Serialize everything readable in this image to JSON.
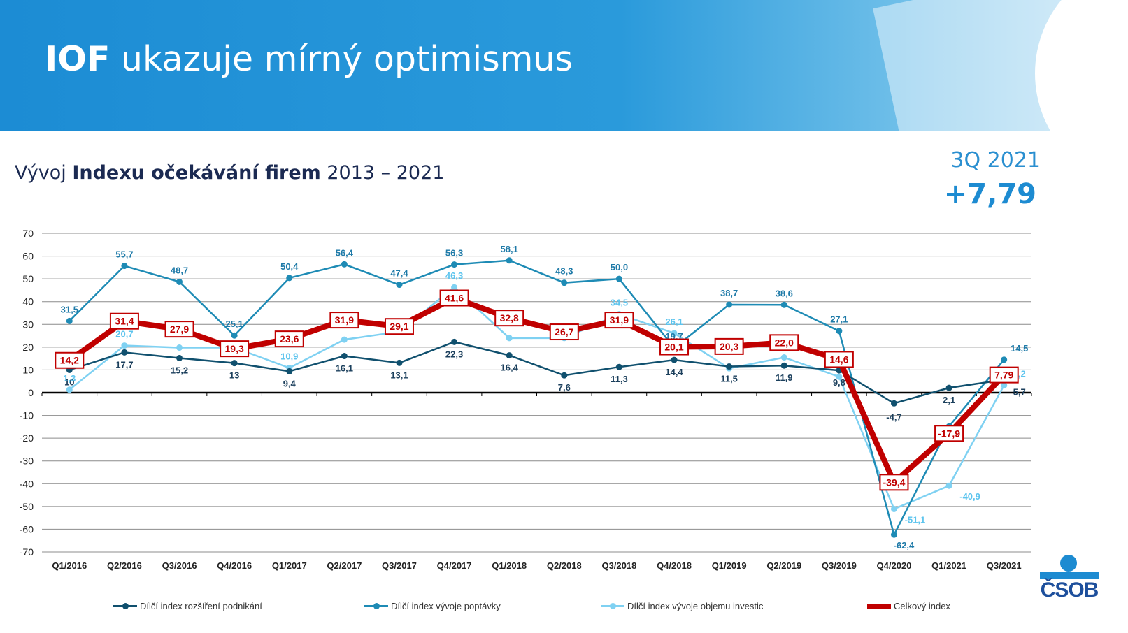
{
  "header": {
    "title_bold": "IOF",
    "title_rest": " ukazuje mírný optimismus"
  },
  "subtitle": {
    "pre": "Vývoj ",
    "bold": "Indexu očekávání firem",
    "post": " 2013 – 2021"
  },
  "kpi": {
    "quarter": "3Q 2021",
    "value": "+7,79"
  },
  "logo": {
    "text": "ČSOB"
  },
  "colors": {
    "s1": "#10506e",
    "s2": "#1e8bb5",
    "s3": "#7fd1f2",
    "s4": "#c00000"
  },
  "chart_data": {
    "type": "line",
    "categories": [
      "Q1/2016",
      "Q2/2016",
      "Q3/2016",
      "Q4/2016",
      "Q1/2017",
      "Q2/2017",
      "Q3/2017",
      "Q4/2017",
      "Q1/2018",
      "Q2/2018",
      "Q3/2018",
      "Q4/2018",
      "Q1/2019",
      "Q2/2019",
      "Q3/2019",
      "Q4/2020",
      "Q1/2021",
      "Q3/2021"
    ],
    "ylim": [
      -70,
      70
    ],
    "yticks": [
      70,
      60,
      50,
      40,
      30,
      20,
      10,
      0,
      -10,
      -20,
      -30,
      -40,
      -50,
      -60,
      -70
    ],
    "grid": true,
    "legend_position": "bottom",
    "series": [
      {
        "name": "Dílčí index rozšíření podnikání",
        "color": "#10506e",
        "values": [
          10,
          17.7,
          15.2,
          13,
          9.4,
          16.1,
          13.1,
          22.3,
          16.4,
          7.6,
          11.3,
          14.4,
          11.5,
          11.9,
          9.8,
          -4.7,
          2.1,
          5.7
        ],
        "labels": [
          "10",
          "17,7",
          "15,2",
          "13",
          "9,4",
          "16,1",
          "13,1",
          "22,3",
          "16,4",
          "7,6",
          "11,3",
          "14,4",
          "11,5",
          "11,9",
          "9,8",
          "-4,7",
          "2,1",
          "5,7"
        ]
      },
      {
        "name": "Dílčí index vývoje poptávky",
        "color": "#1e8bb5",
        "values": [
          31.5,
          55.7,
          48.7,
          25.1,
          50.4,
          56.4,
          47.4,
          56.3,
          58.1,
          48.3,
          50.0,
          19.7,
          38.7,
          38.6,
          27.1,
          -62.4,
          -14.8,
          14.5
        ],
        "labels": [
          "31,5",
          "55,7",
          "48,7",
          "25,1",
          "50,4",
          "56,4",
          "47,4",
          "56,3",
          "58,1",
          "48,3",
          "50,0",
          "19,7",
          "38,7",
          "38,6",
          "27,1",
          "-62,4",
          "-14,8",
          "14,5"
        ]
      },
      {
        "name": "Dílčí index vývoje objemu investic",
        "color": "#7fd1f2",
        "values": [
          1.3,
          20.7,
          19.8,
          19.8,
          10.9,
          23.3,
          26.8,
          46.3,
          24.0,
          24.0,
          34.5,
          26.1,
          10.7,
          15.5,
          7.0,
          -51.1,
          -40.9,
          3.2
        ],
        "labels": [
          "1,3",
          "20,7",
          "",
          "",
          "10,9",
          "",
          "",
          "46,3",
          "",
          "",
          "34,5",
          "26,1",
          "",
          "",
          "",
          "-51,1",
          "-40,9",
          "3,2"
        ]
      },
      {
        "name": "Celkový index",
        "color": "#c00000",
        "values": [
          14.2,
          31.4,
          27.9,
          19.3,
          23.6,
          31.9,
          29.1,
          41.6,
          32.8,
          26.7,
          31.9,
          20.1,
          20.3,
          22.0,
          14.6,
          -39.4,
          -17.9,
          7.79
        ],
        "labels": [
          "14,2",
          "31,4",
          "27,9",
          "19,3",
          "23,6",
          "31,9",
          "29,1",
          "41,6",
          "32,8",
          "26,7",
          "31,9",
          "20,1",
          "20,3",
          "22,0",
          "14,6",
          "-39,4",
          "-17,9",
          "7,79"
        ]
      }
    ]
  }
}
